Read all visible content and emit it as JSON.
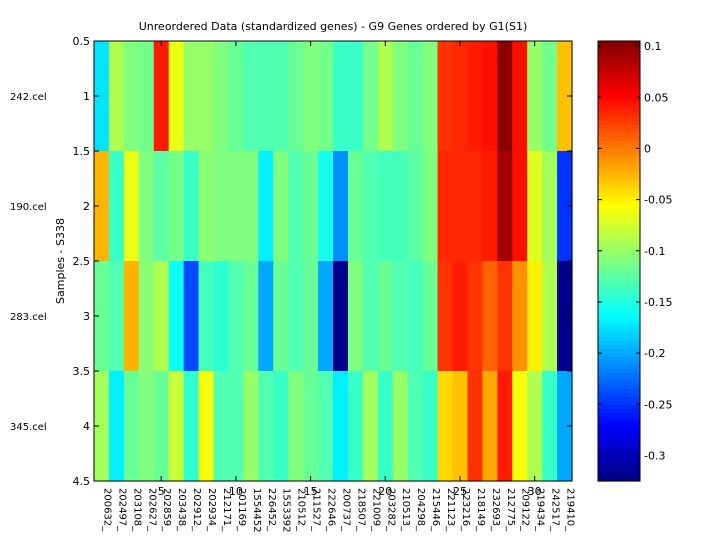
{
  "chart_data": {
    "type": "heatmap",
    "title": "Unreordered Data (standardized genes) - G9 Genes ordered by G1(S1)",
    "ylabel": "Samples - S338",
    "xlim": [
      0.5,
      32.5
    ],
    "ylim": [
      0.5,
      4.5
    ],
    "x_ticks": [
      5,
      10,
      15,
      20,
      25,
      30
    ],
    "y_ticks": [
      0.5,
      1,
      1.5,
      2,
      2.5,
      3,
      3.5,
      4,
      4.5
    ],
    "grid": false,
    "colormap": "jet",
    "colorbar": {
      "min": -0.325,
      "max": 0.105,
      "ticks": [
        0.1,
        0.05,
        0,
        -0.05,
        -0.1,
        -0.15,
        -0.2,
        -0.25,
        -0.3
      ]
    },
    "rows": [
      "242.cel",
      "190.cel",
      "283.cel",
      "345.cel"
    ],
    "columns": [
      "200632_",
      "202497_",
      "203108_",
      "202627_",
      "202859_",
      "203438_",
      "202912_",
      "202934_",
      "212171_",
      "201169_",
      "1554452",
      "226452_",
      "1553392",
      "210512_",
      "211527_",
      "222646_",
      "200737_",
      "218507_",
      "221009_",
      "203282_",
      "210513_",
      "204298_",
      "215446_",
      "221123_",
      "223216_",
      "218149_",
      "232693_",
      "212775_",
      "209122_",
      "219434_",
      "242517_",
      "219410_"
    ],
    "values": [
      [
        -0.175,
        -0.09,
        -0.11,
        -0.115,
        0.04,
        -0.065,
        -0.1,
        -0.1,
        -0.11,
        -0.12,
        -0.13,
        -0.13,
        -0.13,
        -0.12,
        -0.11,
        -0.115,
        -0.14,
        -0.14,
        -0.115,
        -0.09,
        -0.11,
        -0.12,
        -0.11,
        0.03,
        0.035,
        0.04,
        0.045,
        0.1,
        0.045,
        -0.1,
        -0.115,
        -0.03
      ],
      [
        -0.025,
        -0.14,
        -0.065,
        -0.11,
        -0.125,
        -0.115,
        -0.14,
        -0.105,
        -0.11,
        -0.11,
        -0.11,
        -0.17,
        -0.11,
        -0.13,
        -0.12,
        -0.155,
        -0.21,
        -0.12,
        -0.13,
        -0.135,
        -0.135,
        -0.125,
        -0.11,
        0.035,
        0.035,
        0.035,
        0.04,
        0.09,
        0.045,
        -0.07,
        -0.095,
        -0.25
      ],
      [
        -0.12,
        -0.13,
        -0.025,
        -0.105,
        -0.09,
        -0.16,
        -0.24,
        -0.135,
        -0.145,
        -0.13,
        -0.12,
        -0.2,
        -0.12,
        -0.13,
        -0.12,
        -0.2,
        -0.32,
        -0.11,
        -0.13,
        -0.12,
        -0.13,
        -0.135,
        -0.12,
        0.03,
        0.04,
        0.03,
        0.01,
        0.03,
        -0.01,
        -0.05,
        -0.09,
        -0.32
      ],
      [
        -0.095,
        -0.17,
        -0.12,
        -0.11,
        -0.12,
        -0.08,
        -0.145,
        -0.06,
        -0.13,
        -0.13,
        -0.1,
        -0.13,
        -0.14,
        -0.11,
        -0.12,
        -0.13,
        -0.17,
        -0.14,
        -0.095,
        -0.14,
        -0.1,
        -0.13,
        -0.14,
        -0.04,
        -0.03,
        0.03,
        -0.02,
        0.04,
        -0.06,
        -0.09,
        -0.14,
        -0.2
      ]
    ]
  }
}
